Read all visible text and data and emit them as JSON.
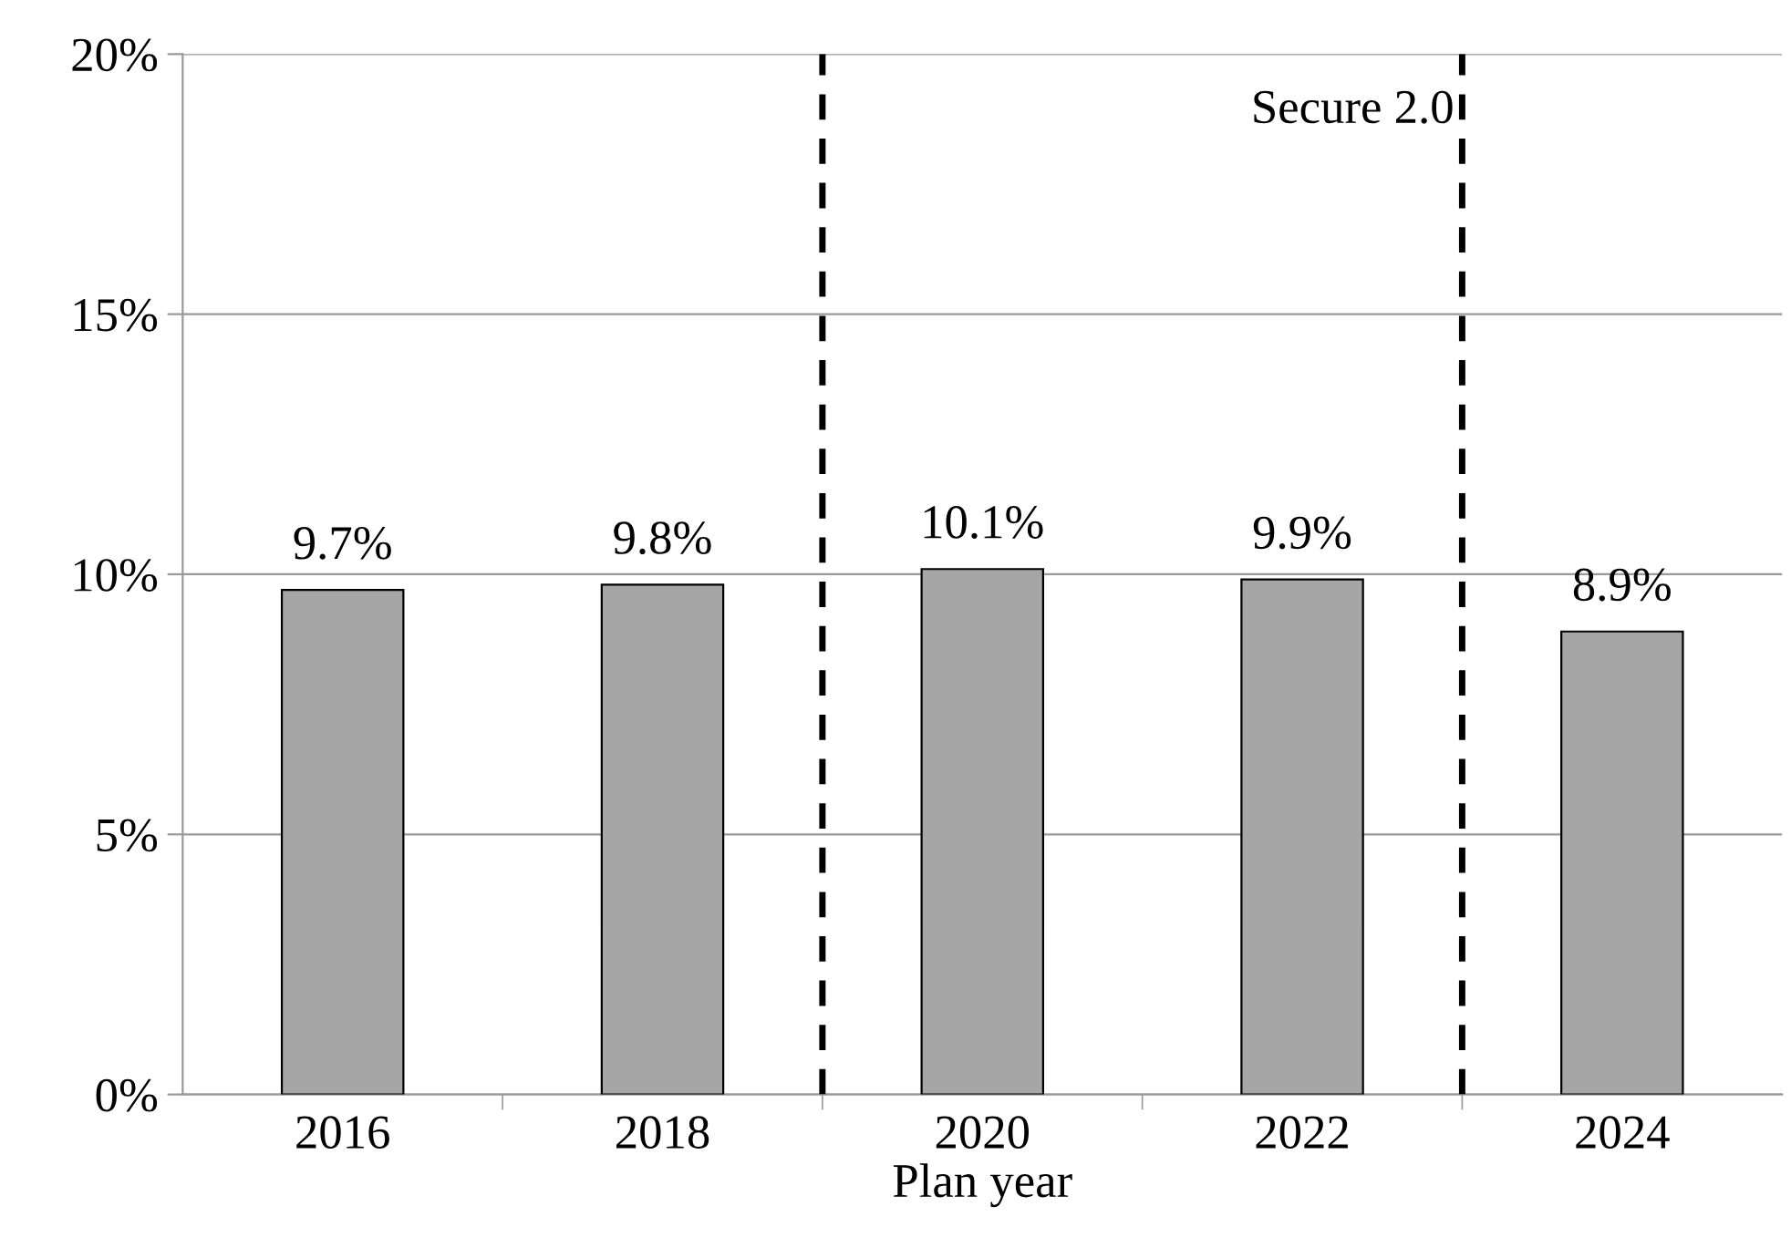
{
  "chart_data": {
    "type": "bar",
    "xlabel": "Plan year",
    "categories": [
      "2016",
      "2018",
      "2020",
      "2022",
      "2024"
    ],
    "values": [
      9.7,
      9.8,
      10.1,
      9.9,
      8.9
    ],
    "value_labels": [
      "9.7%",
      "9.8%",
      "10.1%",
      "9.9%",
      "8.9%"
    ],
    "color": "#a6a6a6",
    "ylim": [
      0,
      20
    ],
    "yticks": [
      {
        "value": 0,
        "label": "0%"
      },
      {
        "value": 5,
        "label": "5%"
      },
      {
        "value": 10,
        "label": "10%"
      },
      {
        "value": 15,
        "label": "15%"
      },
      {
        "value": 20,
        "label": "20%"
      }
    ],
    "grid": "y",
    "annotations": [
      "Secure 2.0"
    ]
  }
}
